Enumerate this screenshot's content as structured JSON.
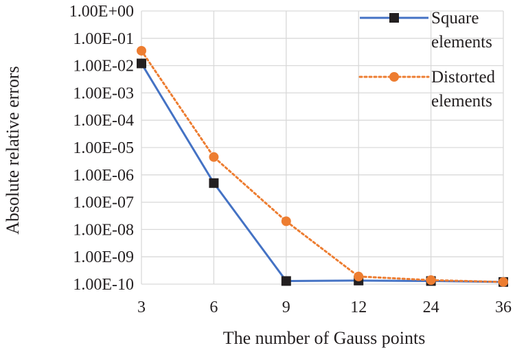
{
  "chart_data": {
    "type": "line",
    "title": "",
    "xlabel": "The number of Gauss points",
    "ylabel": "Absolute relative errors",
    "categories": [
      "3",
      "6",
      "9",
      "12",
      "24",
      "36"
    ],
    "yscale": "log",
    "ylim": [
      1e-10,
      1
    ],
    "yticks": [
      {
        "value": 1,
        "label": "1.00E+00"
      },
      {
        "value": 0.1,
        "label": "1.00E-01"
      },
      {
        "value": 0.01,
        "label": "1.00E-02"
      },
      {
        "value": 0.001,
        "label": "1.00E-03"
      },
      {
        "value": 0.0001,
        "label": "1.00E-04"
      },
      {
        "value": 1e-05,
        "label": "1.00E-05"
      },
      {
        "value": 1e-06,
        "label": "1.00E-06"
      },
      {
        "value": 1e-07,
        "label": "1.00E-07"
      },
      {
        "value": 1e-08,
        "label": "1.00E-08"
      },
      {
        "value": 1e-09,
        "label": "1.00E-09"
      },
      {
        "value": 1e-10,
        "label": "1.00E-10"
      }
    ],
    "grid": true,
    "legend_position": "top-right",
    "series": [
      {
        "name_lines": [
          "Square",
          "elements"
        ],
        "values": [
          0.012,
          5e-07,
          1.3e-10,
          1.35e-10,
          1.3e-10,
          1.2e-10
        ],
        "color": "#4472c4",
        "line_style": "solid",
        "marker": "square",
        "marker_color": "#231f20"
      },
      {
        "name_lines": [
          "Distorted",
          "elements"
        ],
        "values": [
          0.035,
          4.5e-06,
          2e-08,
          1.9e-10,
          1.4e-10,
          1.2e-10
        ],
        "color": "#ed7d31",
        "line_style": "dotted",
        "marker": "circle",
        "marker_color": "#ed7d31"
      }
    ]
  }
}
